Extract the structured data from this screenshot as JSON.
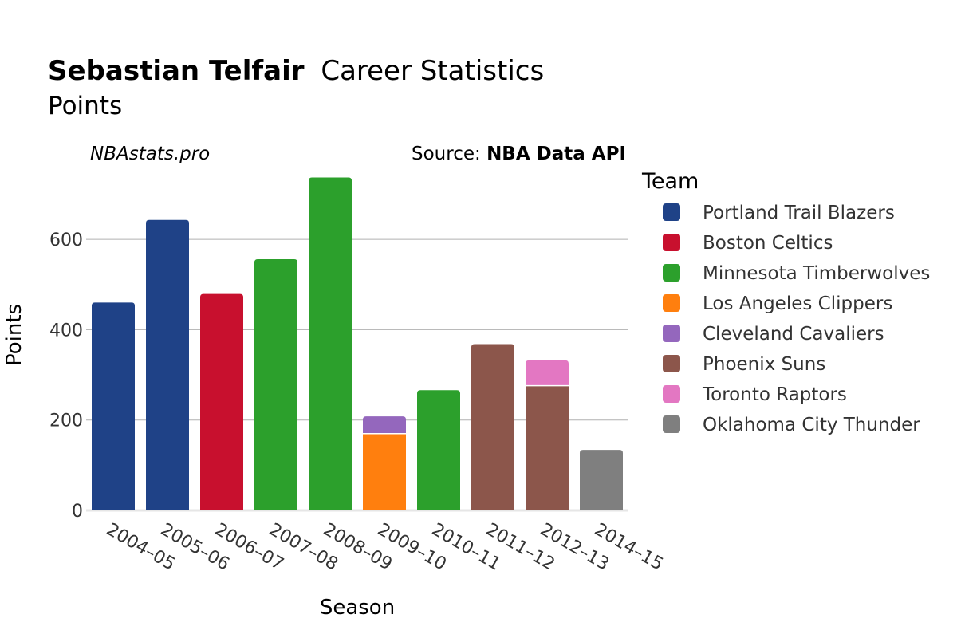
{
  "header": {
    "player_name": "Sebastian Telfair",
    "title_rest": "Career Statistics",
    "subtitle": "Points",
    "site": "NBAstats.pro",
    "source_prefix": "Source: ",
    "source_name": "NBA Data API"
  },
  "chart_data": {
    "type": "bar",
    "stacked": true,
    "title": "Sebastian Telfair Career Statistics",
    "subtitle": "Points",
    "xlabel": "Season",
    "ylabel": "Points",
    "ylim": [
      0,
      750
    ],
    "yticks": [
      0,
      200,
      400,
      600
    ],
    "grid": true,
    "legend_title": "Team",
    "legend_position": "right",
    "categories": [
      "2004–05",
      "2005–06",
      "2006–07",
      "2007–08",
      "2008–09",
      "2009–10",
      "2010–11",
      "2011–12",
      "2012–13",
      "2014–15"
    ],
    "series": [
      {
        "name": "Portland Trail Blazers",
        "color": "#1f4287",
        "values": [
          460,
          643,
          0,
          0,
          0,
          0,
          0,
          0,
          0,
          0
        ]
      },
      {
        "name": "Boston Celtics",
        "color": "#c8102e",
        "values": [
          0,
          0,
          479,
          0,
          0,
          0,
          0,
          0,
          0,
          0
        ]
      },
      {
        "name": "Minnesota Timberwolves",
        "color": "#2ca02c",
        "values": [
          0,
          0,
          0,
          556,
          737,
          0,
          266,
          0,
          0,
          0
        ]
      },
      {
        "name": "Los Angeles Clippers",
        "color": "#ff7f0e",
        "values": [
          0,
          0,
          0,
          0,
          0,
          170,
          0,
          0,
          0,
          0
        ]
      },
      {
        "name": "Cleveland Cavaliers",
        "color": "#9467bd",
        "values": [
          0,
          0,
          0,
          0,
          0,
          38,
          0,
          0,
          0,
          0
        ]
      },
      {
        "name": "Phoenix Suns",
        "color": "#8c564b",
        "values": [
          0,
          0,
          0,
          0,
          0,
          0,
          0,
          368,
          276,
          0
        ]
      },
      {
        "name": "Toronto Raptors",
        "color": "#e377c2",
        "values": [
          0,
          0,
          0,
          0,
          0,
          0,
          0,
          0,
          56,
          0
        ]
      },
      {
        "name": "Oklahoma City Thunder",
        "color": "#7f7f7f",
        "values": [
          0,
          0,
          0,
          0,
          0,
          0,
          0,
          0,
          0,
          134
        ]
      }
    ]
  }
}
